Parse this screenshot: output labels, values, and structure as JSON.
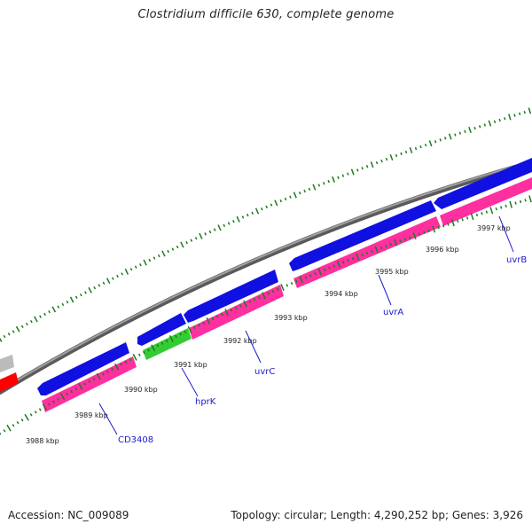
{
  "title": "Clostridium difficile 630, complete genome",
  "footer": {
    "accession": "Accession: NC_009089",
    "summary": "Topology: circular; Length: 4,290,252 bp; Genes: 3,926"
  },
  "colors": {
    "forward_cds": "#1010e0",
    "cds_feature": "#ff2fa0",
    "highlight_gene": "#33cc33",
    "backbone": "#888888",
    "ticks": "#1e7a1e",
    "gene_label": "#1a1ad0",
    "partial_red": "#ff0000",
    "partial_grey": "#bbbbbb"
  },
  "tick_labels": [
    "3988 kbp",
    "3989 kbp",
    "3990 kbp",
    "3991 kbp",
    "3992 kbp",
    "3993 kbp",
    "3994 kbp",
    "3995 kbp",
    "3996 kbp",
    "3997 kbp"
  ],
  "gene_labels": [
    "CD3408",
    "hprK",
    "uvrC",
    "uvrA",
    "uvrB"
  ]
}
